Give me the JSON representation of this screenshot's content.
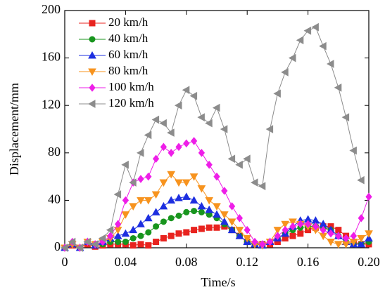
{
  "chart_data": {
    "type": "line",
    "x_label": "Time/s",
    "y_label": "Displacement/mm",
    "x": [
      0,
      0.005,
      0.01,
      0.015,
      0.02,
      0.025,
      0.03,
      0.035,
      0.04,
      0.045,
      0.05,
      0.055,
      0.06,
      0.065,
      0.07,
      0.075,
      0.08,
      0.085,
      0.09,
      0.095,
      0.1,
      0.105,
      0.11,
      0.115,
      0.12,
      0.125,
      0.13,
      0.135,
      0.14,
      0.145,
      0.15,
      0.155,
      0.16,
      0.165,
      0.17,
      0.175,
      0.18,
      0.185,
      0.19,
      0.195,
      0.2
    ],
    "series": [
      {
        "name": "20 km/h",
        "color": "#e8231f",
        "marker": "square",
        "values": [
          0,
          2,
          0,
          3,
          1,
          2,
          3,
          3,
          3,
          2,
          3,
          2,
          5,
          8,
          10,
          12,
          13,
          15,
          16,
          17,
          17,
          18,
          15,
          10,
          5,
          3,
          3,
          3,
          5,
          8,
          10,
          12,
          15,
          17,
          18,
          18,
          15,
          10,
          5,
          3,
          3
        ]
      },
      {
        "name": "40 km/h",
        "color": "#18951e",
        "marker": "circle",
        "values": [
          0,
          3,
          0,
          5,
          2,
          3,
          5,
          5,
          5,
          8,
          10,
          13,
          18,
          22,
          25,
          27,
          30,
          31,
          30,
          28,
          25,
          20,
          15,
          10,
          5,
          3,
          3,
          5,
          8,
          12,
          15,
          17,
          18,
          18,
          17,
          15,
          10,
          5,
          3,
          3,
          5
        ]
      },
      {
        "name": "60 km/h",
        "color": "#1d2fe0",
        "marker": "triangle-up",
        "values": [
          0,
          3,
          0,
          5,
          2,
          5,
          8,
          10,
          12,
          15,
          20,
          25,
          30,
          35,
          40,
          42,
          43,
          40,
          35,
          32,
          28,
          22,
          15,
          10,
          5,
          3,
          2,
          5,
          8,
          12,
          18,
          23,
          24,
          23,
          20,
          15,
          10,
          5,
          3,
          3,
          8
        ]
      },
      {
        "name": "80 km/h",
        "color": "#f7931e",
        "marker": "triangle-down",
        "values": [
          0,
          3,
          0,
          5,
          3,
          5,
          8,
          15,
          28,
          35,
          40,
          40,
          45,
          55,
          62,
          55,
          55,
          60,
          50,
          40,
          35,
          28,
          22,
          15,
          8,
          3,
          2,
          5,
          15,
          20,
          22,
          20,
          18,
          15,
          10,
          5,
          3,
          3,
          5,
          8,
          12
        ]
      },
      {
        "name": "100 km/h",
        "color": "#ee1ee8",
        "marker": "diamond",
        "values": [
          0,
          5,
          0,
          5,
          3,
          5,
          10,
          20,
          40,
          55,
          58,
          60,
          75,
          85,
          80,
          85,
          88,
          90,
          80,
          70,
          60,
          48,
          35,
          25,
          15,
          5,
          3,
          5,
          10,
          15,
          18,
          20,
          20,
          18,
          15,
          12,
          10,
          8,
          10,
          25,
          43
        ]
      },
      {
        "name": "120 km/h",
        "color": "#8c8c8c",
        "marker": "triangle-left",
        "values": [
          0,
          5,
          0,
          5,
          3,
          8,
          15,
          45,
          70,
          55,
          80,
          95,
          108,
          105,
          97,
          120,
          133,
          128,
          110,
          105,
          118,
          100,
          75,
          70,
          75,
          55,
          52,
          100,
          130,
          148,
          160,
          175,
          183,
          186,
          170,
          155,
          135,
          110,
          82,
          57,
          null
        ]
      }
    ],
    "xlim": [
      0,
      0.2
    ],
    "xticks": [
      0,
      0.04,
      0.08,
      0.12,
      0.16,
      {
        "value": 0.2,
        "label": "0.20"
      }
    ],
    "ylim": [
      0,
      200
    ],
    "yticks": [
      0,
      40,
      80,
      120,
      160,
      200
    ],
    "legend": "upper-left",
    "grid": false
  }
}
